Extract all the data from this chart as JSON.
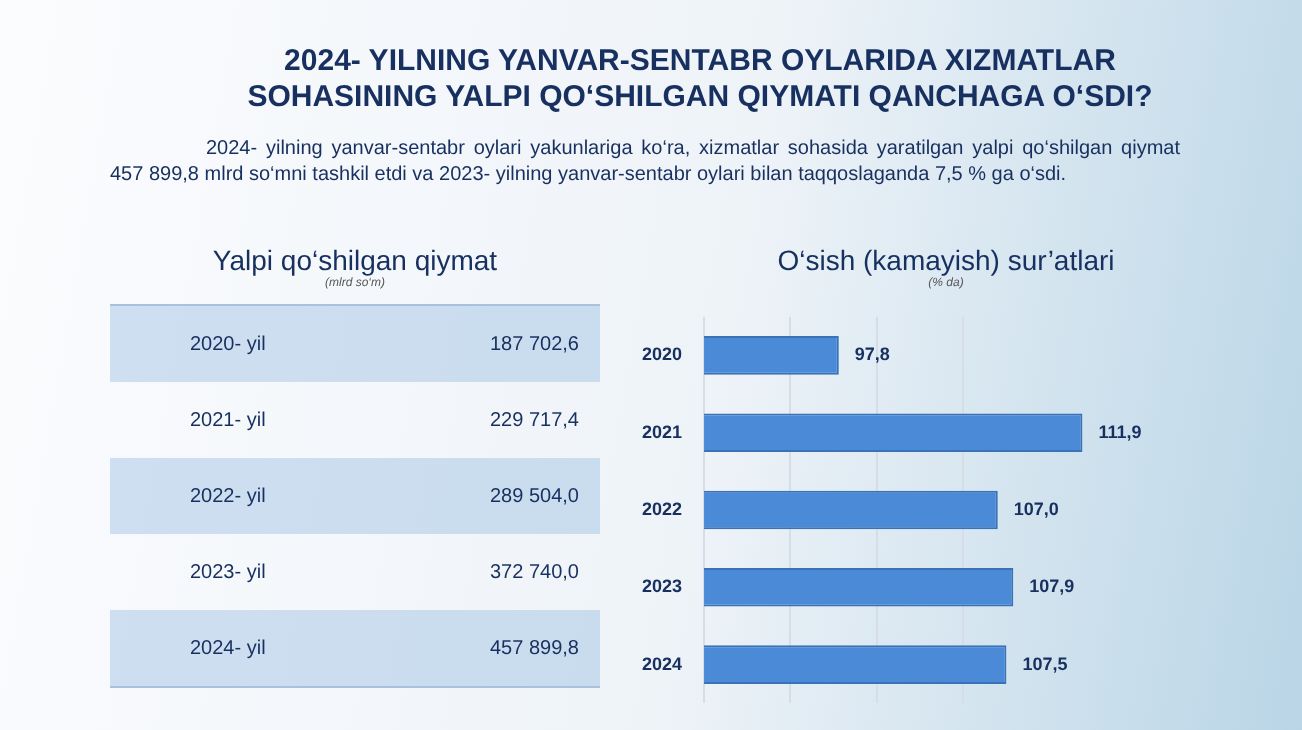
{
  "chart_data": [
    {
      "type": "other",
      "title": "2024- YILNING YANVAR-SENTABR OYLARIDA XIZMATLAR SOHASINING YALPI QO‘SHILGAN QIYMATI QANCHAGA O‘SDI?",
      "annotations": [
        "2024- yilning yanvar-sentabr oylari yakunlariga ko‘ra, xizmatlar sohasida yaratilgan yalpi qo‘shilgan qiymat 457 899,8 mlrd so‘mni tashkil etdi va 2023- yilning yanvar-sentabr oylari bilan taqqoslaganda 7,5 % ga o‘sdi."
      ]
    },
    {
      "type": "other",
      "title": "Yalpi qo‘shilgan qiymat",
      "subtitle": "(mlrd so‘m)",
      "categories": [
        "2020- yil",
        "2021- yil",
        "2022- yil",
        "2023- yil",
        "2024- yil"
      ],
      "values": [
        187702.6,
        229717.4,
        289504.0,
        372740.0,
        457899.8
      ],
      "value_labels": [
        "187 702,6",
        "229 717,4",
        "289 504,0",
        "372 740,0",
        "457 899,8"
      ]
    },
    {
      "type": "bar",
      "orientation": "horizontal",
      "title": "O‘sish (kamayish) sur’atlari",
      "subtitle": "(% da)",
      "categories": [
        "2020",
        "2021",
        "2022",
        "2023",
        "2024"
      ],
      "values": [
        97.8,
        111.9,
        107.0,
        107.9,
        107.5
      ],
      "color": "#4a8ad6",
      "value_labels": [
        "97,8",
        "111,9",
        "107,0",
        "107,9",
        "107,5"
      ],
      "xticks": [
        {
          "value": 90,
          "label": null
        },
        {
          "value": 95,
          "label": null
        },
        {
          "value": 100,
          "label": null
        },
        {
          "value": 105,
          "label": null
        }
      ],
      "grid": "x",
      "tick_labels": "y",
      "legend": false
    }
  ]
}
